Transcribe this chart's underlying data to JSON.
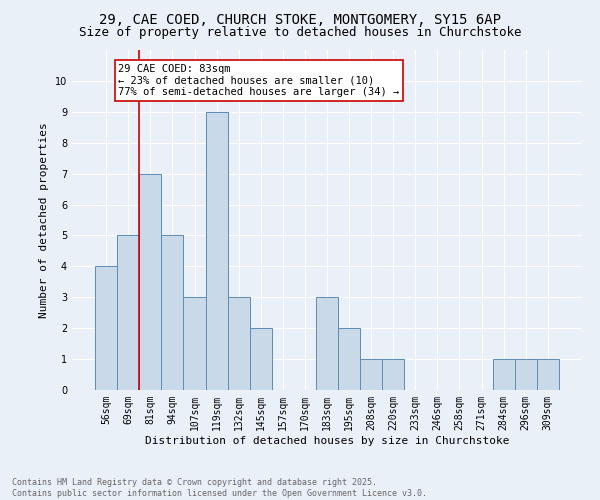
{
  "title1": "29, CAE COED, CHURCH STOKE, MONTGOMERY, SY15 6AP",
  "title2": "Size of property relative to detached houses in Churchstoke",
  "xlabel": "Distribution of detached houses by size in Churchstoke",
  "ylabel": "Number of detached properties",
  "categories": [
    "56sqm",
    "69sqm",
    "81sqm",
    "94sqm",
    "107sqm",
    "119sqm",
    "132sqm",
    "145sqm",
    "157sqm",
    "170sqm",
    "183sqm",
    "195sqm",
    "208sqm",
    "220sqm",
    "233sqm",
    "246sqm",
    "258sqm",
    "271sqm",
    "284sqm",
    "296sqm",
    "309sqm"
  ],
  "values": [
    4,
    5,
    7,
    5,
    3,
    9,
    3,
    2,
    0,
    0,
    3,
    2,
    1,
    1,
    0,
    0,
    0,
    0,
    1,
    1,
    1
  ],
  "bar_color": "#c9d9e8",
  "bar_edge_color": "#5b8db8",
  "vline_index": 2,
  "vline_color": "#cc0000",
  "annotation_text": "29 CAE COED: 83sqm\n← 23% of detached houses are smaller (10)\n77% of semi-detached houses are larger (34) →",
  "annotation_box_color": "white",
  "annotation_box_edge_color": "#cc0000",
  "ylim": [
    0,
    11
  ],
  "yticks": [
    0,
    1,
    2,
    3,
    4,
    5,
    6,
    7,
    8,
    9,
    10,
    11
  ],
  "background_color": "#eaf0f8",
  "footer_text": "Contains HM Land Registry data © Crown copyright and database right 2025.\nContains public sector information licensed under the Open Government Licence v3.0.",
  "title1_fontsize": 10,
  "title2_fontsize": 9,
  "xlabel_fontsize": 8,
  "ylabel_fontsize": 8,
  "tick_fontsize": 7,
  "annotation_fontsize": 7.5,
  "footer_fontsize": 6
}
